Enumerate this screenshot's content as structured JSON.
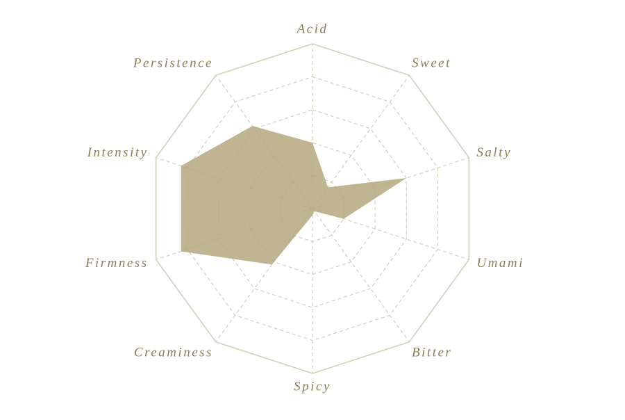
{
  "chart_data": {
    "type": "radar",
    "categories": [
      "Acid",
      "Sweet",
      "Salty",
      "Umami",
      "Bitter",
      "Spicy",
      "Creaminess",
      "Firmness",
      "Intensity",
      "Persistence"
    ],
    "values": [
      2,
      0.8,
      3,
      1,
      0.1,
      0.2,
      2.1,
      4.2,
      4.2,
      3.1
    ],
    "color": "#b5a87f",
    "rlim": [
      0,
      5
    ],
    "rticks": [
      1,
      2,
      3,
      4,
      5
    ],
    "grid": true
  }
}
